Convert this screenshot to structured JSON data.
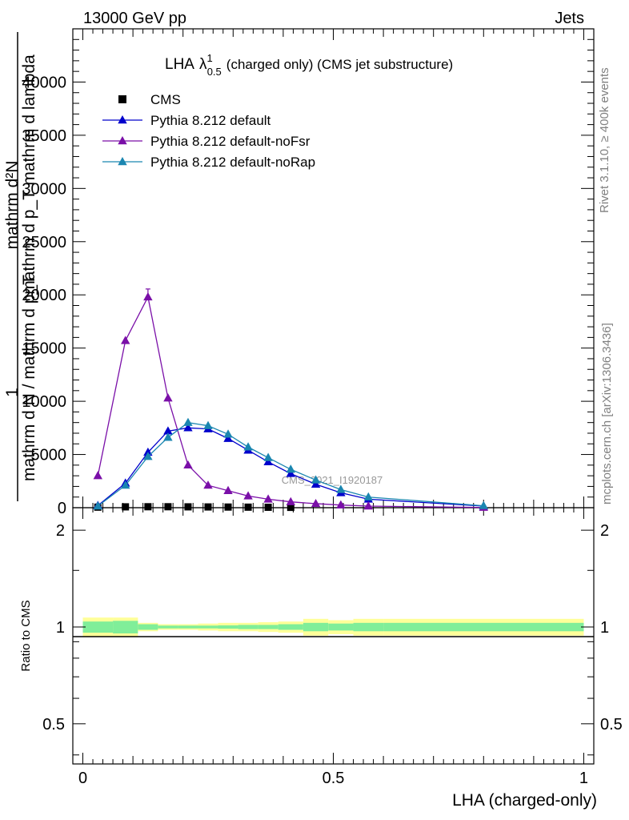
{
  "header": {
    "left": "13000 GeV pp",
    "right": "Jets"
  },
  "title": {
    "main": "LHA",
    "lambda": "λ",
    "sup": "1",
    "sub": "0.5",
    "rest": "(charged only) (CMS jet substructure)"
  },
  "side_labels": {
    "rivet": "Rivet 3.1.10, ≥ 400k events",
    "mcplots": "mcplots.cern.ch [arXiv:1306.3436]"
  },
  "watermark": "CMS_2021_I1920187",
  "ylabel_main": {
    "numerator": "mathrm d²N",
    "numerator_2": "mathrm d p_T mathrm d lambda",
    "one": "1",
    "denominator": "mathrm d N / mathrm d p_T"
  },
  "ylabel_ratio": "Ratio to CMS",
  "xlabel": "LHA (charged-only)",
  "colors": {
    "cms": "#000000",
    "default": "#0000cc",
    "noFsr": "#7a0fa8",
    "noRap": "#1a86b0",
    "band_outer": "#ffff99",
    "band_inner": "#80ee99"
  },
  "chart_data": {
    "type": "line",
    "main": {
      "xlim": [
        -0.02,
        1.02
      ],
      "ylim": [
        0,
        45000
      ],
      "yticks": [
        0,
        5000,
        10000,
        15000,
        20000,
        25000,
        30000,
        35000,
        40000
      ],
      "ytick_labels": [
        "0",
        "5000",
        "10000",
        "15000",
        "20000",
        "25000",
        "30000",
        "35000",
        "40000"
      ],
      "legend": "top-left",
      "series": [
        {
          "name": "CMS",
          "marker": "square",
          "x": [
            0.03,
            0.085,
            0.13,
            0.17,
            0.21,
            0.25,
            0.29,
            0.33,
            0.37,
            0.415
          ],
          "y": [
            50,
            80,
            90,
            90,
            80,
            70,
            60,
            50,
            40,
            30
          ]
        },
        {
          "name": "Pythia 8.212 default",
          "marker": "triangle",
          "x": [
            0.03,
            0.085,
            0.13,
            0.17,
            0.21,
            0.25,
            0.29,
            0.33,
            0.37,
            0.415,
            0.465,
            0.515,
            0.57,
            0.8
          ],
          "y": [
            200,
            2300,
            5200,
            7200,
            7500,
            7400,
            6500,
            5400,
            4300,
            3200,
            2200,
            1400,
            800,
            150
          ]
        },
        {
          "name": "Pythia 8.212 default-noFsr",
          "marker": "triangle",
          "x": [
            0.03,
            0.085,
            0.13,
            0.17,
            0.21,
            0.25,
            0.29,
            0.33,
            0.37,
            0.415,
            0.465,
            0.515,
            0.57,
            0.8
          ],
          "y": [
            3000,
            15700,
            19800,
            10300,
            4000,
            2100,
            1600,
            1100,
            800,
            550,
            380,
            250,
            150,
            20
          ]
        },
        {
          "name": "Pythia 8.212 default-noRap",
          "marker": "triangle",
          "x": [
            0.03,
            0.085,
            0.13,
            0.17,
            0.21,
            0.25,
            0.29,
            0.33,
            0.37,
            0.415,
            0.465,
            0.515,
            0.57,
            0.8
          ],
          "y": [
            150,
            2100,
            4800,
            6600,
            8000,
            7700,
            6900,
            5700,
            4700,
            3600,
            2600,
            1700,
            1000,
            180
          ]
        }
      ]
    },
    "ratio": {
      "ylim": [
        0.375,
        2.35
      ],
      "yticks": [
        0.5,
        1,
        2
      ],
      "ytick_labels": [
        "0.5",
        "1",
        "2"
      ],
      "xticks": [
        0,
        0.5,
        1
      ],
      "xtick_labels": [
        "0",
        "0.5",
        "1"
      ],
      "bins": [
        0,
        0.06,
        0.11,
        0.15,
        0.19,
        0.23,
        0.27,
        0.31,
        0.35,
        0.39,
        0.44,
        0.49,
        0.54,
        0.6,
        1.0
      ],
      "band_outer": [
        0.07,
        0.07,
        0.03,
        0.02,
        0.02,
        0.025,
        0.03,
        0.03,
        0.035,
        0.04,
        0.06,
        0.05,
        0.06,
        0.06
      ],
      "band_inner": [
        0.04,
        0.045,
        0.02,
        0.01,
        0.01,
        0.01,
        0.012,
        0.015,
        0.015,
        0.02,
        0.03,
        0.025,
        0.03,
        0.03
      ]
    }
  }
}
